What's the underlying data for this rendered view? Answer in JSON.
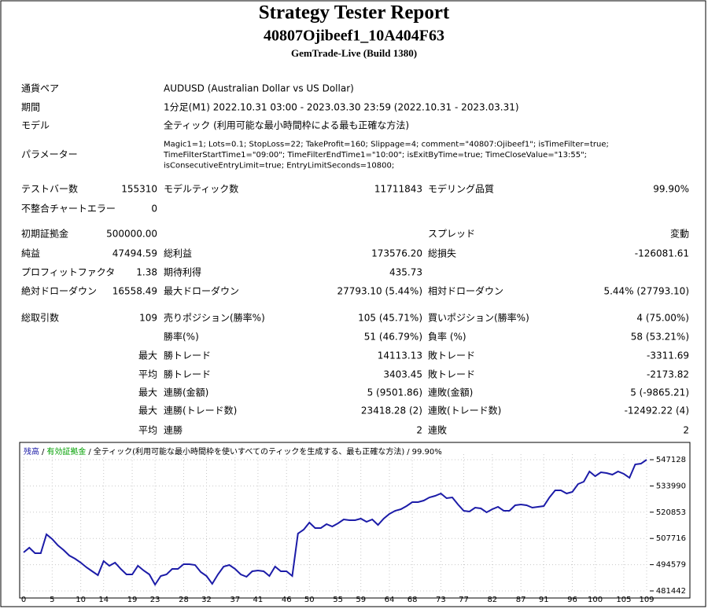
{
  "header": {
    "title": "Strategy Tester Report",
    "subtitle": "40807Ojibeef1_10A404F63",
    "build": "GemTrade-Live (Build 1380)"
  },
  "info": [
    {
      "label": "通貨ペア",
      "value": [
        "AUDUSD (Australian Dollar vs US Dollar)"
      ]
    },
    {
      "label": "期間",
      "value": [
        "1分足(M1) 2022.10.31 03:00 - 2023.03.30 23:59 (2022.10.31 - 2023.03.31)"
      ]
    },
    {
      "label": "モデル",
      "value": [
        "全ティック (利用可能な最小時間枠による最も正確な方法)"
      ]
    },
    {
      "label": "パラメーター",
      "value": [
        "Magic1=1; Lots=0.1; StopLoss=22; TakeProfit=160; Slippage=4; comment=\"40807:Ojibeef1\"; isTimeFilter=true;",
        "TimeFilterStartTime1=\"09:00\"; TimeFilterEndTime1=\"10:00\"; isExitByTime=true; TimeCloseValue=\"13:55\";",
        "isConsecutiveEntryLimit=true; EntryLimitSeconds=10800;"
      ]
    }
  ],
  "stats": [
    [
      "テストバー数",
      "155310",
      "モデルティック数",
      "11711843",
      "モデリング品質",
      "99.90%"
    ],
    [
      "不整合チャートエラー",
      "0",
      null,
      null,
      null,
      null
    ],
    [
      "初期証拠金",
      "500000.00",
      null,
      null,
      "スプレッド",
      "変動"
    ],
    [
      "純益",
      "47494.59",
      "総利益",
      "173576.20",
      "総損失",
      "-126081.61"
    ],
    [
      "プロフィットファクタ",
      "1.38",
      "期待利得",
      "435.73",
      null,
      null
    ],
    [
      "絶対ドローダウン",
      "16558.49",
      "最大ドローダウン",
      "27793.10 (5.44%)",
      "相対ドローダウン",
      "5.44% (27793.10)"
    ],
    [
      "総取引数",
      "109",
      "売りポジション(勝率%)",
      "105 (45.71%)",
      "買いポジション(勝率%)",
      "4 (75.00%)"
    ],
    [
      null,
      null,
      "勝率(%)",
      "51 (46.79%)",
      "負率 (%)",
      "58 (53.21%)"
    ],
    [
      null,
      "最大",
      "勝トレード",
      "14113.13",
      "敗トレード",
      "-3311.69"
    ],
    [
      null,
      "平均",
      "勝トレード",
      "3403.45",
      "敗トレード",
      "-2173.82"
    ],
    [
      null,
      "最大",
      "連勝(金額)",
      "5 (9501.86)",
      "連敗(金額)",
      "5 (-9865.21)"
    ],
    [
      null,
      "最大",
      "連勝(トレード数)",
      "23418.28 (2)",
      "連敗(トレード数)",
      "-12492.22 (4)"
    ],
    [
      null,
      "平均",
      "連勝",
      "2",
      "連敗",
      "2"
    ]
  ],
  "chart_data": {
    "type": "line",
    "legend_separator": "/",
    "equity_legend": {
      "name": "有効証拠金",
      "color": "#00a000"
    },
    "legend_note": "全ティック(利用可能な最小時間枠を使いすべてのティックを生成する、最も正確な方法)",
    "legend_quality": "99.90%",
    "xlim": [
      0,
      109
    ],
    "xticks": [
      0,
      5,
      10,
      14,
      19,
      23,
      28,
      32,
      37,
      41,
      46,
      50,
      55,
      59,
      64,
      68,
      73,
      77,
      82,
      87,
      91,
      96,
      100,
      105,
      109
    ],
    "ylim": [
      481442,
      547128
    ],
    "yticks": [
      481442,
      494579,
      507716,
      520853,
      533990,
      547128
    ],
    "grid": true,
    "series": [
      {
        "name": "残高",
        "color": "#1c1ca8",
        "values": [
          500714,
          503074,
          500320,
          500320,
          509760,
          507400,
          504253,
          501894,
          499141,
          497567,
          495601,
          493241,
          491275,
          489308,
          496387,
          494028,
          495601,
          492454,
          489701,
          489701,
          494028,
          491668,
          489701,
          484588,
          488915,
          489701,
          492454,
          492454,
          494814,
          494814,
          494421,
          490881,
          488915,
          484982,
          489701,
          493634,
          494421,
          492454,
          489701,
          488521,
          491275,
          491668,
          491275,
          488915,
          493634,
          491275,
          491275,
          488915,
          510153,
          512119,
          515659,
          512906,
          512906,
          514873,
          513693,
          515266,
          517232,
          516839,
          516839,
          517626,
          516052,
          517232,
          514479,
          517626,
          519985,
          521559,
          522345,
          523918,
          525885,
          525885,
          526672,
          528245,
          529031,
          530211,
          527851,
          528245,
          524705,
          521559,
          521165,
          523132,
          522739,
          520772,
          522345,
          523525,
          521559,
          521559,
          524312,
          524705,
          524312,
          523132,
          523525,
          523918,
          528245,
          531784,
          531784,
          530211,
          530998,
          534931,
          536111,
          541224,
          538864,
          540830,
          540437,
          539650,
          541224,
          540044,
          538077,
          544763,
          545157,
          547128
        ]
      }
    ]
  }
}
